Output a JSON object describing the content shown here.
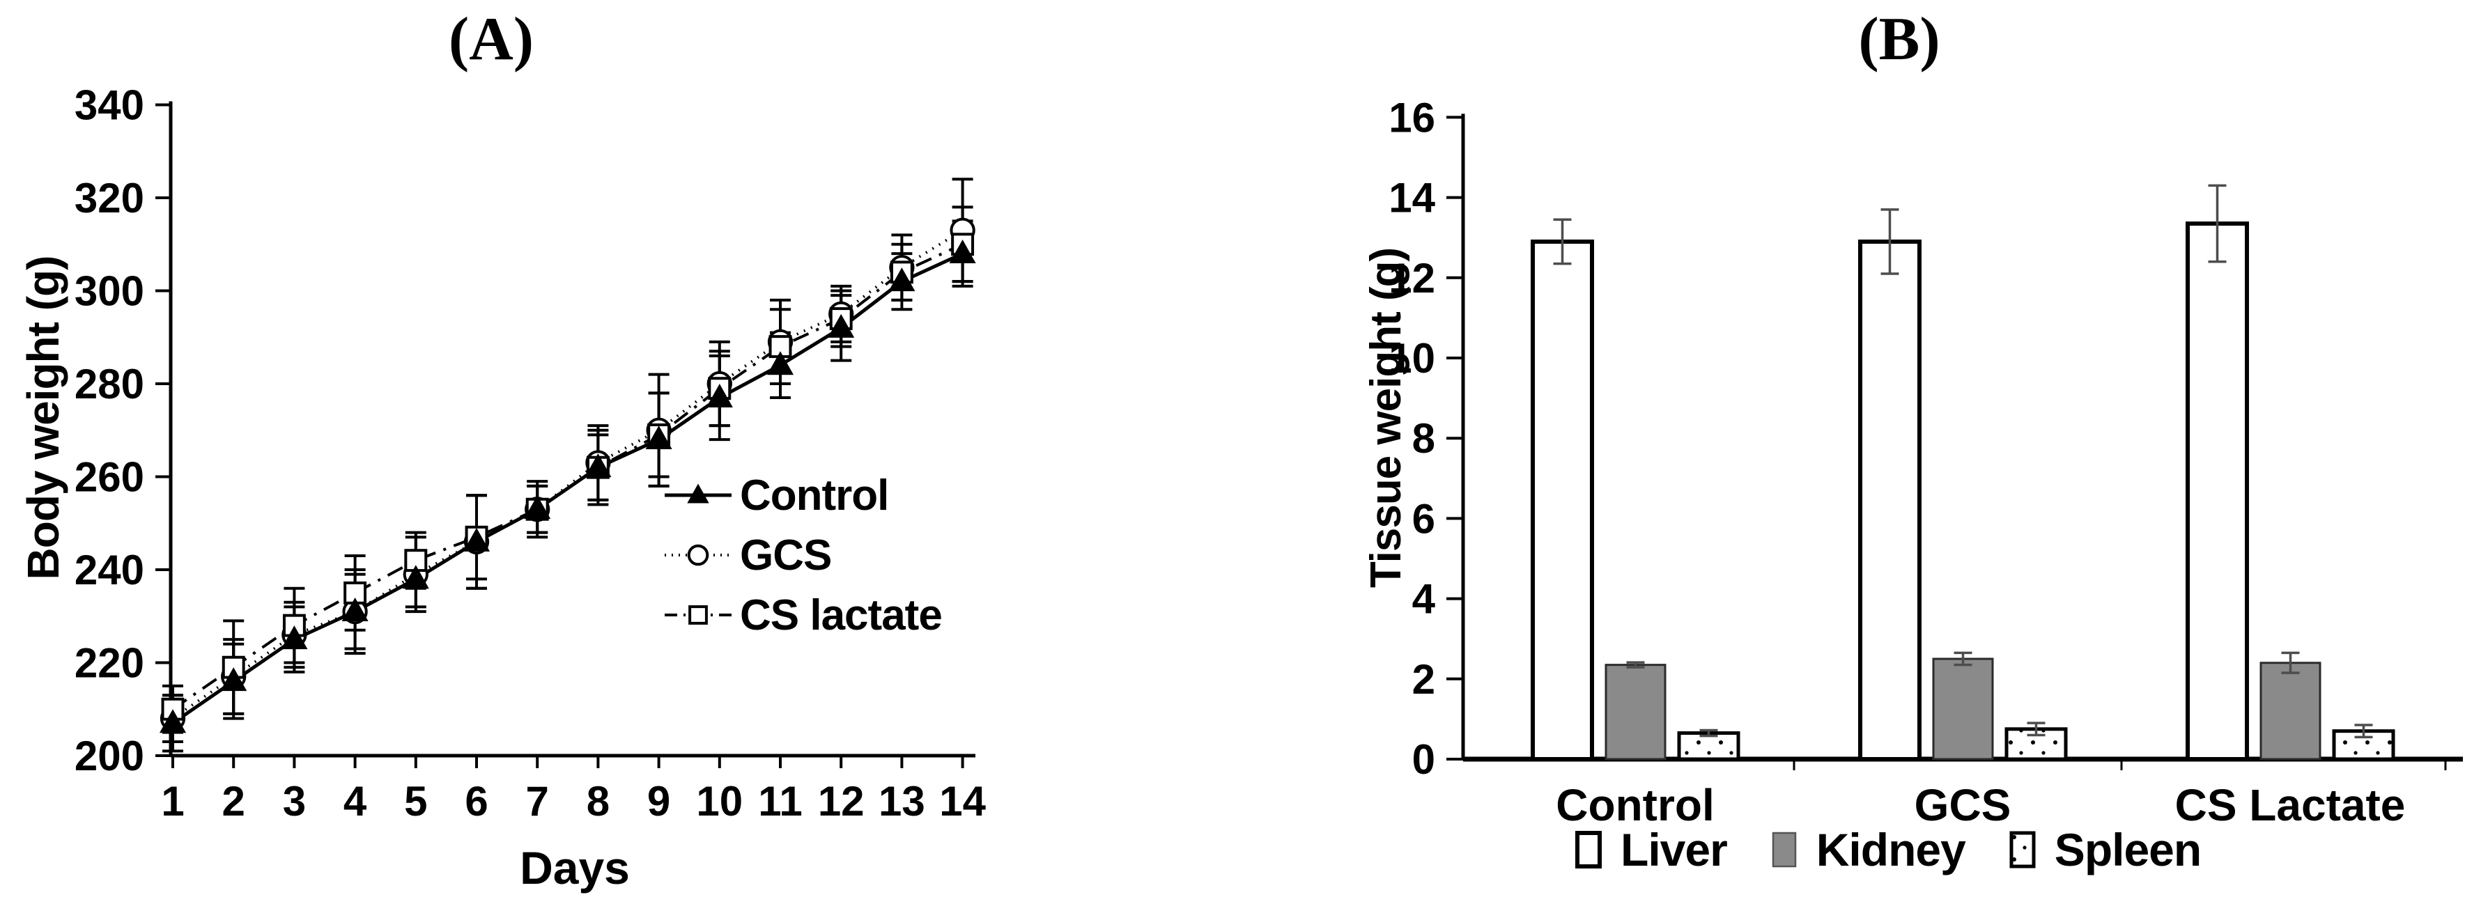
{
  "figure": {
    "background": "#ffffff",
    "text_color": "#000000"
  },
  "chart_data": [
    {
      "type": "line",
      "panel": "A",
      "title": "(A)",
      "xlabel": "Days",
      "ylabel": "Body weight (g)",
      "x": [
        1,
        2,
        3,
        4,
        5,
        6,
        7,
        8,
        9,
        10,
        11,
        12,
        13,
        14
      ],
      "xlim": [
        1,
        14
      ],
      "ylim": [
        200,
        340
      ],
      "yticks": [
        200,
        220,
        240,
        260,
        280,
        300,
        320,
        340
      ],
      "grid": false,
      "legend_position": "inside-right",
      "error_bar_color": "#000000",
      "series": [
        {
          "name": "Control",
          "marker": "filled-triangle",
          "line_style": "solid",
          "color": "#000000",
          "values": [
            207,
            216,
            225,
            231,
            238,
            246,
            253,
            262,
            268,
            277,
            284,
            292,
            302,
            308
          ],
          "errors": [
            6,
            8,
            7,
            8,
            6,
            10,
            5,
            7,
            10,
            9,
            7,
            7,
            6,
            7
          ]
        },
        {
          "name": "GCS",
          "marker": "open-circle",
          "line_style": "dotted",
          "color": "#000000",
          "values": [
            208,
            217,
            226,
            231,
            239,
            246,
            253,
            263,
            270,
            280,
            289,
            295,
            305,
            313
          ],
          "errors": [
            5,
            8,
            7,
            9,
            8,
            10,
            5,
            8,
            12,
            9,
            9,
            6,
            7,
            11
          ]
        },
        {
          "name": "CS lactate",
          "marker": "open-square",
          "line_style": "dash-dot",
          "color": "#000000",
          "values": [
            210,
            219,
            228,
            235,
            242,
            247,
            253,
            262,
            269,
            279,
            288,
            294,
            304,
            310
          ],
          "errors": [
            5,
            10,
            8,
            8,
            6,
            9,
            6,
            8,
            9,
            8,
            8,
            6,
            6,
            8
          ]
        }
      ]
    },
    {
      "type": "bar",
      "panel": "B",
      "title": "(B)",
      "xlabel": "",
      "ylabel": "Tissue weight (g)",
      "categories": [
        "Control",
        "GCS",
        "CS Lactate"
      ],
      "ylim": [
        0,
        16
      ],
      "yticks": [
        0,
        2,
        4,
        6,
        8,
        10,
        12,
        14,
        16
      ],
      "grid": false,
      "legend_position": "below",
      "error_bar_color": "#4d4d4d",
      "colors": {
        "kidney_gray": "#8a8a8a",
        "bar_white": "#ffffff",
        "bar_stroke": "#000000"
      },
      "series": [
        {
          "name": "Liver",
          "fill": "#ffffff",
          "pattern": "none",
          "stroke": "#000000",
          "values": [
            12.9,
            12.9,
            13.35
          ],
          "errors": [
            0.55,
            0.8,
            0.95
          ]
        },
        {
          "name": "Kidney",
          "fill": "#8a8a8a",
          "pattern": "none",
          "stroke": "#2b2b2b",
          "values": [
            2.35,
            2.5,
            2.4
          ],
          "errors": [
            0.06,
            0.15,
            0.25
          ]
        },
        {
          "name": "Spleen",
          "fill": "#ffffff",
          "pattern": "dots",
          "stroke": "#000000",
          "values": [
            0.65,
            0.75,
            0.7
          ],
          "errors": [
            0.07,
            0.15,
            0.15
          ]
        }
      ]
    }
  ]
}
